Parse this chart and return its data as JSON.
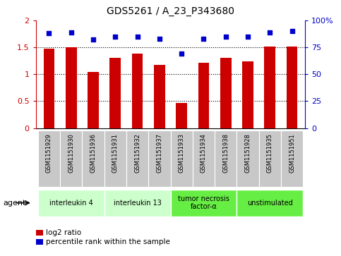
{
  "title": "GDS5261 / A_23_P343680",
  "samples": [
    "GSM1151929",
    "GSM1151930",
    "GSM1151936",
    "GSM1151931",
    "GSM1151932",
    "GSM1151937",
    "GSM1151933",
    "GSM1151934",
    "GSM1151938",
    "GSM1151928",
    "GSM1151935",
    "GSM1151951"
  ],
  "log2_ratio": [
    1.47,
    1.5,
    1.04,
    1.31,
    1.39,
    1.18,
    0.46,
    1.21,
    1.31,
    1.24,
    1.51,
    1.51
  ],
  "percentile_rank": [
    88,
    89,
    82,
    85,
    85,
    83,
    69,
    83,
    85,
    85,
    89,
    90
  ],
  "ylim_left": [
    0,
    2
  ],
  "ylim_right": [
    0,
    100
  ],
  "yticks_left": [
    0,
    0.5,
    1.0,
    1.5,
    2.0
  ],
  "yticks_right": [
    0,
    25,
    50,
    75,
    100
  ],
  "ytick_labels_left": [
    "0",
    "0.5",
    "1",
    "1.5",
    "2"
  ],
  "ytick_labels_right": [
    "0",
    "25",
    "50",
    "75",
    "100%"
  ],
  "bar_color": "#cc0000",
  "scatter_color": "#0000cc",
  "agents": [
    {
      "label": "interleukin 4",
      "start": 0,
      "end": 2,
      "color": "#ccffcc"
    },
    {
      "label": "interleukin 13",
      "start": 3,
      "end": 5,
      "color": "#ccffcc"
    },
    {
      "label": "tumor necrosis\nfactor-α",
      "start": 6,
      "end": 8,
      "color": "#66ee44"
    },
    {
      "label": "unstimulated",
      "start": 9,
      "end": 11,
      "color": "#66ee44"
    }
  ],
  "agent_label": "agent",
  "legend_items": [
    {
      "color": "#cc0000",
      "label": "log2 ratio"
    },
    {
      "color": "#0000cc",
      "label": "percentile rank within the sample"
    }
  ],
  "background_xtick": "#c8c8c8",
  "fig_bg": "#ffffff"
}
